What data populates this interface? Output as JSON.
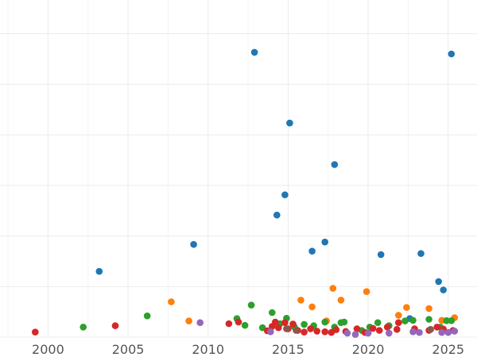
{
  "chart_data": {
    "type": "scatter",
    "title": "",
    "xlabel": "",
    "ylabel": "",
    "xlim": [
      1997,
      2026.8
    ],
    "ylim": [
      0,
      100
    ],
    "x_ticks": [
      2000,
      2005,
      2010,
      2015,
      2020,
      2025
    ],
    "x_tick_labels": [
      "2000",
      "2005",
      "2010",
      "2015",
      "2020",
      "2025"
    ],
    "y_gridlines": [
      0,
      15,
      30,
      45,
      60,
      75,
      90
    ],
    "grid": true,
    "legend": "none",
    "series": [
      {
        "color": "#1f77b4",
        "points": [
          [
            2003.2,
            19.5
          ],
          [
            2009.1,
            27.5
          ],
          [
            2012.9,
            84.5
          ],
          [
            2014.3,
            36.2
          ],
          [
            2014.8,
            42.2
          ],
          [
            2015.1,
            63.5
          ],
          [
            2016.5,
            25.5
          ],
          [
            2017.3,
            28.2
          ],
          [
            2017.9,
            51.2
          ],
          [
            2020.8,
            24.5
          ],
          [
            2022.6,
            5.5
          ],
          [
            2023.3,
            24.8
          ],
          [
            2024.4,
            16.5
          ],
          [
            2024.7,
            14.0
          ],
          [
            2025.2,
            84.0
          ]
        ]
      },
      {
        "color": "#ff7f0e",
        "points": [
          [
            2007.7,
            10.5
          ],
          [
            2008.8,
            4.8
          ],
          [
            2015.8,
            11.0
          ],
          [
            2016.5,
            9.0
          ],
          [
            2017.4,
            4.8
          ],
          [
            2017.8,
            14.5
          ],
          [
            2018.3,
            11.0
          ],
          [
            2019.9,
            13.5
          ],
          [
            2021.9,
            6.5
          ],
          [
            2022.4,
            8.8
          ],
          [
            2023.8,
            8.5
          ],
          [
            2024.6,
            5.0
          ],
          [
            2025.4,
            5.8
          ]
        ]
      },
      {
        "color": "#2ca02c",
        "points": [
          [
            2002.2,
            3.0
          ],
          [
            2006.2,
            6.3
          ],
          [
            2011.8,
            5.5
          ],
          [
            2012.3,
            3.5
          ],
          [
            2012.7,
            9.5
          ],
          [
            2013.4,
            2.8
          ],
          [
            2014.0,
            7.3
          ],
          [
            2014.5,
            4.0
          ],
          [
            2014.9,
            5.6
          ],
          [
            2015.4,
            3.0
          ],
          [
            2016.0,
            3.8
          ],
          [
            2016.6,
            3.4
          ],
          [
            2017.3,
            4.5
          ],
          [
            2017.9,
            3.0
          ],
          [
            2018.3,
            4.3
          ],
          [
            2018.5,
            4.5
          ],
          [
            2019.6,
            2.0
          ],
          [
            2020.1,
            3.0
          ],
          [
            2020.6,
            4.3
          ],
          [
            2021.3,
            3.4
          ],
          [
            2022.3,
            4.8
          ],
          [
            2022.8,
            5.0
          ],
          [
            2023.8,
            5.3
          ],
          [
            2024.5,
            3.0
          ],
          [
            2024.9,
            4.9
          ],
          [
            2025.2,
            4.9
          ]
        ]
      },
      {
        "color": "#d62728",
        "points": [
          [
            1999.2,
            1.5
          ],
          [
            2004.2,
            3.4
          ],
          [
            2011.3,
            4.0
          ],
          [
            2011.9,
            4.5
          ],
          [
            2013.7,
            1.9
          ],
          [
            2014.0,
            3.2
          ],
          [
            2014.2,
            4.5
          ],
          [
            2014.4,
            2.8
          ],
          [
            2014.8,
            4.3
          ],
          [
            2015.0,
            2.5
          ],
          [
            2015.3,
            3.9
          ],
          [
            2015.6,
            2.0
          ],
          [
            2016.0,
            1.5
          ],
          [
            2016.4,
            2.5
          ],
          [
            2016.8,
            1.8
          ],
          [
            2017.3,
            1.6
          ],
          [
            2017.7,
            1.4
          ],
          [
            2018.0,
            2.2
          ],
          [
            2018.6,
            1.7
          ],
          [
            2019.3,
            2.5
          ],
          [
            2019.8,
            1.4
          ],
          [
            2020.3,
            2.6
          ],
          [
            2020.7,
            2.0
          ],
          [
            2021.2,
            3.0
          ],
          [
            2021.8,
            2.3
          ],
          [
            2021.9,
            4.3
          ],
          [
            2022.9,
            2.5
          ],
          [
            2023.8,
            2.0
          ],
          [
            2024.3,
            3.0
          ],
          [
            2024.7,
            2.4
          ],
          [
            2025.3,
            2.0
          ]
        ]
      },
      {
        "color": "#9467bd",
        "points": [
          [
            2009.5,
            4.3
          ],
          [
            2013.9,
            1.6
          ],
          [
            2018.7,
            1.2
          ],
          [
            2019.2,
            0.8
          ],
          [
            2020.0,
            1.2
          ],
          [
            2021.3,
            1.2
          ],
          [
            2022.8,
            1.6
          ],
          [
            2023.2,
            1.4
          ],
          [
            2024.6,
            1.4
          ],
          [
            2025.0,
            1.4
          ],
          [
            2025.4,
            1.8
          ]
        ]
      },
      {
        "color": "#8c564b",
        "points": [
          [
            2014.9,
            2.5
          ],
          [
            2015.5,
            2.0
          ],
          [
            2023.9,
            2.3
          ]
        ]
      }
    ]
  }
}
